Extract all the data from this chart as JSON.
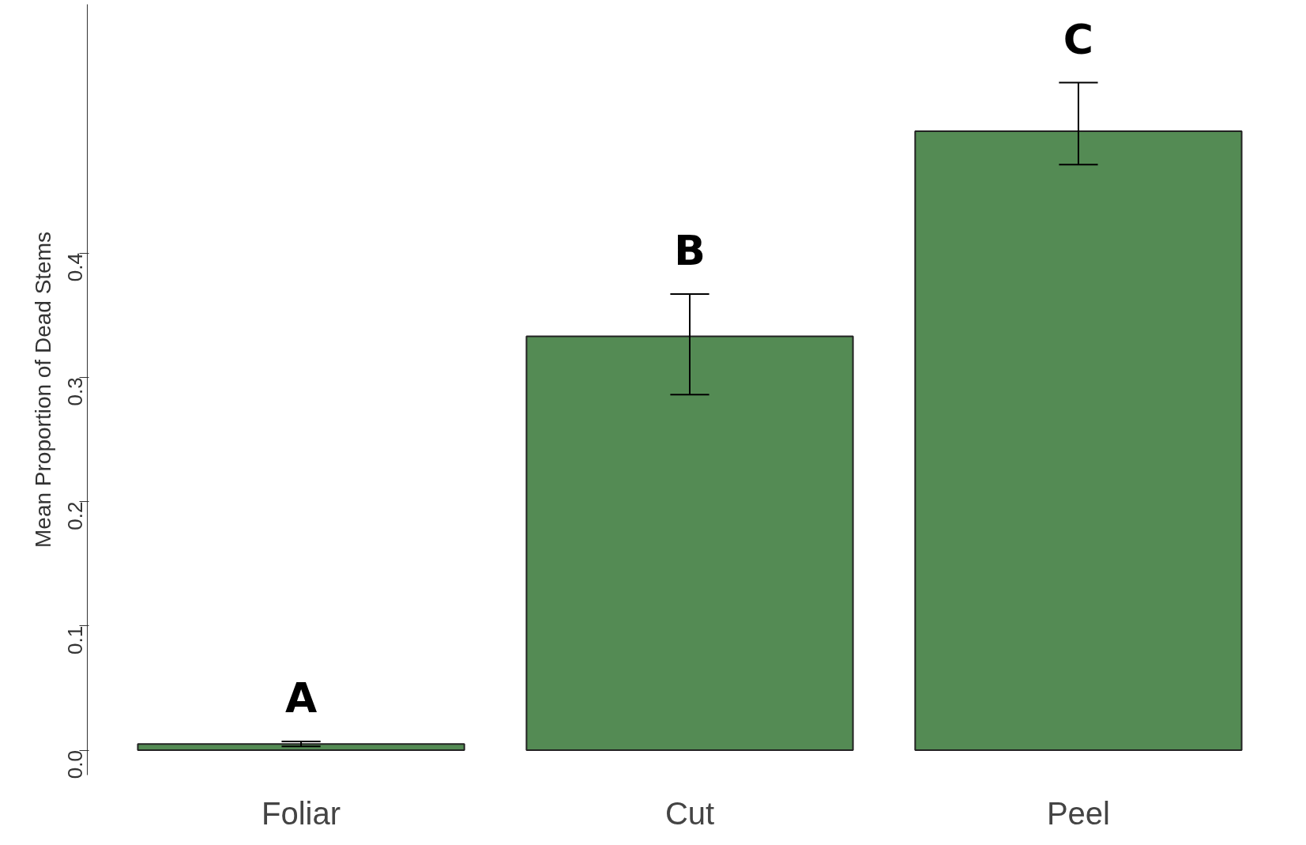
{
  "chart_data": {
    "type": "bar",
    "ylabel": "Mean Proportion of Dead Stems",
    "categories": [
      "Foliar",
      "Cut",
      "Peel"
    ],
    "values": [
      0.005,
      0.333,
      0.498
    ],
    "errors": [
      0.002,
      [
        0.286,
        0.367
      ],
      [
        0.471,
        0.537
      ]
    ],
    "color": "#548b54",
    "ylim": [
      -0.02,
      0.6
    ],
    "yticks": [
      {
        "value": 0,
        "label": "0.0"
      },
      0.1,
      0.2,
      0.3,
      0.4
    ],
    "grid": false,
    "annotations": [
      "A",
      "B",
      "C"
    ]
  }
}
